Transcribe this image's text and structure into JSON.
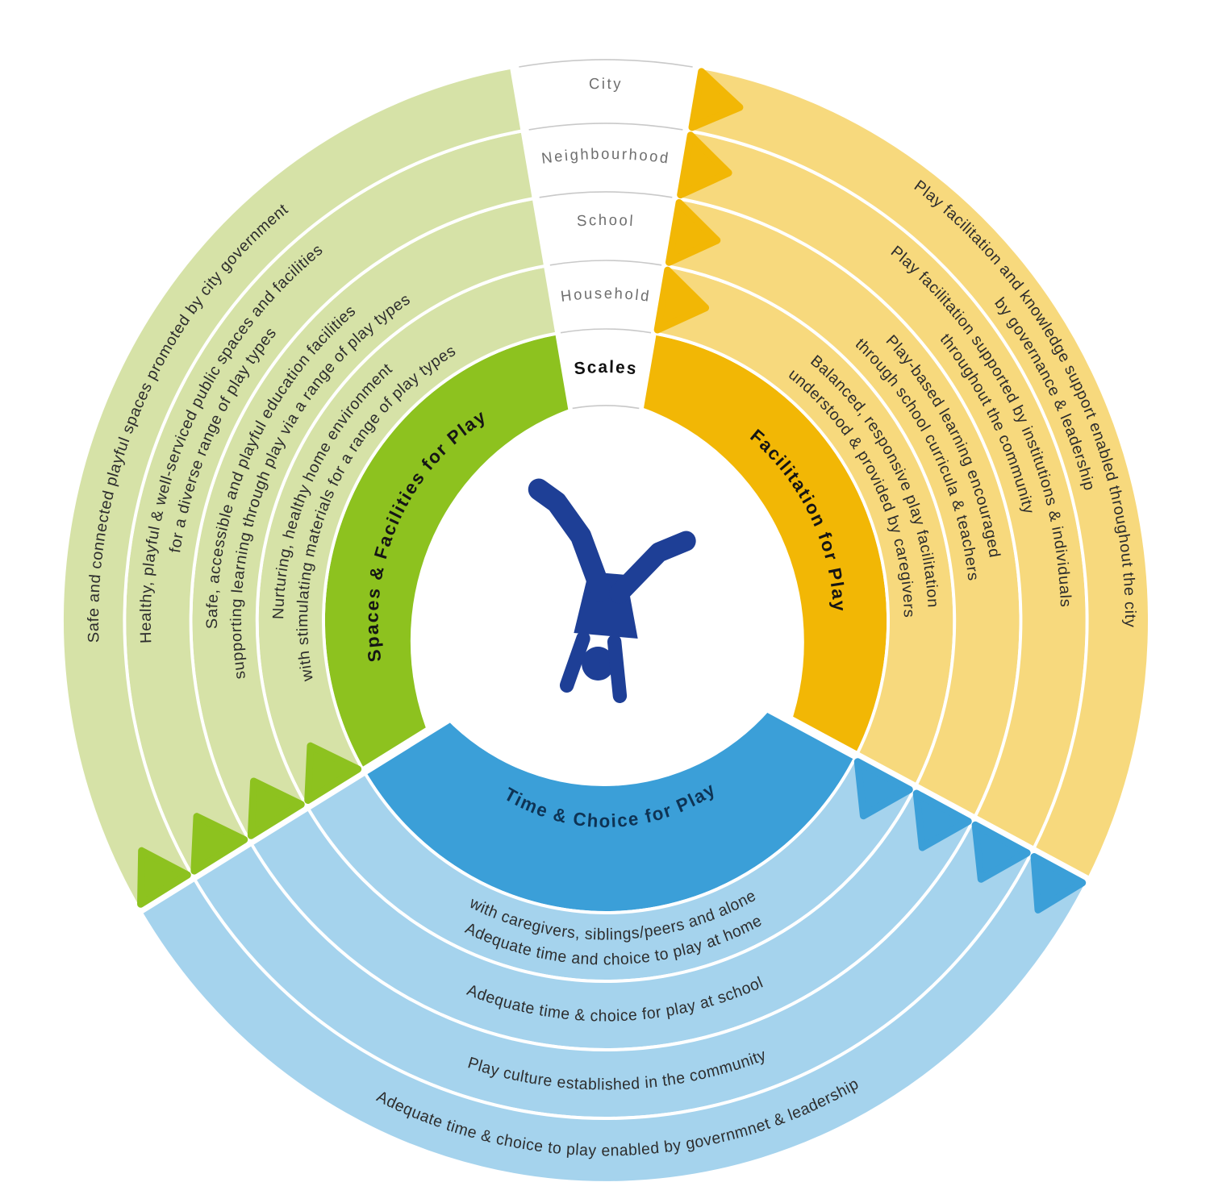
{
  "scales": {
    "heading": "Scales",
    "levels": [
      "City",
      "Neighbourhood",
      "School",
      "Household"
    ]
  },
  "sectors": {
    "spaces": {
      "title": "Spaces & Facilities for Play",
      "colors": {
        "light": "#d6e2a7",
        "dark": "#8dc21f"
      },
      "rings": {
        "city": {
          "text": "Safe and connected playful spaces promoted by city government"
        },
        "neighbourhood": {
          "line1": "Healthy, playful & well-serviced public spaces and facilities",
          "line2": "for a diverse range of play types"
        },
        "school": {
          "line1": "Safe, accessible and playful education facilities",
          "line2": "supporting learning through play via a range of play types"
        },
        "household": {
          "line1": "Nurturing, healthy home environment",
          "line2": "with stimulating materials for a range of play types"
        }
      }
    },
    "facilitation": {
      "title": "Facilitation for Play",
      "colors": {
        "light": "#f7d97d",
        "dark": "#f2b705"
      },
      "rings": {
        "city": {
          "line1": "Play facilitation and knowledge support enabled throughout the city",
          "line2": "by governance & leadership"
        },
        "neighbourhood": {
          "line1": "Play facilitation supported by institutions & individuals",
          "line2": "throughout the community"
        },
        "school": {
          "line1": "Play-based learning encouraged",
          "line2": "through school curricula & teachers"
        },
        "household": {
          "line1": "Balanced, responsive play facilitation",
          "line2": "understood & provided by caregivers"
        }
      }
    },
    "time": {
      "title": "Time & Choice for Play",
      "colors": {
        "light": "#a5d3ed",
        "dark": "#3b9fd8"
      },
      "rings": {
        "household": {
          "line1": "Adequate time and choice to play at home",
          "line2": "with caregivers, siblings/peers and alone"
        },
        "school": {
          "text": "Adequate time & choice for play at school"
        },
        "neighbourhood": {
          "text": "Play culture established in the community"
        },
        "city": {
          "text": "Adequate time & choice to play enabled by governmnet & leadership"
        }
      }
    }
  },
  "center": {
    "figure_icon": "cartwheeling-child",
    "figure_color": "#1e3f96"
  }
}
